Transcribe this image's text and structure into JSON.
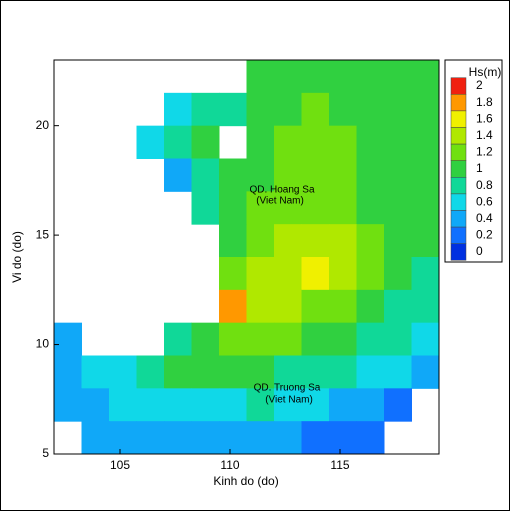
{
  "chart_data": {
    "type": "heatmap",
    "xlabel": "Kinh do (do)",
    "ylabel": "Vi do (do)",
    "xlim": [
      102,
      119.5
    ],
    "ylim": [
      5,
      23
    ],
    "xticks": [
      105,
      110,
      115
    ],
    "yticks": [
      5,
      10,
      15,
      20
    ],
    "x": [
      102.625,
      103.875,
      105.125,
      106.375,
      107.625,
      108.875,
      110.125,
      111.375,
      112.625,
      113.875,
      115.125,
      116.375,
      117.625,
      118.875
    ],
    "y": [
      22.25,
      20.75,
      19.25,
      17.75,
      16.25,
      14.75,
      13.25,
      11.75,
      10.25,
      8.75,
      7.25,
      5.75
    ],
    "values": [
      [
        null,
        null,
        null,
        null,
        null,
        null,
        null,
        1.0,
        1.1,
        1.1,
        1.1,
        1.0,
        1.0,
        1.0
      ],
      [
        null,
        null,
        null,
        null,
        0.6,
        0.9,
        0.8,
        1.0,
        1.1,
        1.2,
        1.1,
        1.1,
        1.0,
        1.0
      ],
      [
        null,
        null,
        null,
        0.6,
        0.9,
        1.0,
        null,
        1.1,
        1.2,
        1.2,
        1.2,
        1.1,
        1.0,
        1.0
      ],
      [
        null,
        null,
        null,
        null,
        0.5,
        0.9,
        1.0,
        1.1,
        1.2,
        1.2,
        1.2,
        1.1,
        1.1,
        1.0
      ],
      [
        null,
        null,
        null,
        null,
        null,
        0.8,
        1.1,
        1.2,
        1.3,
        1.3,
        1.2,
        1.1,
        1.1,
        1.0
      ],
      [
        null,
        null,
        null,
        null,
        null,
        null,
        1.1,
        1.3,
        1.4,
        1.5,
        1.4,
        1.2,
        1.1,
        1.0
      ],
      [
        null,
        null,
        null,
        null,
        null,
        null,
        1.2,
        1.4,
        1.5,
        1.6,
        1.4,
        1.2,
        1.0,
        0.9
      ],
      [
        null,
        null,
        null,
        null,
        null,
        null,
        1.8,
        1.5,
        1.4,
        1.3,
        1.2,
        1.0,
        0.9,
        0.8
      ],
      [
        0.5,
        null,
        null,
        null,
        0.9,
        1.1,
        1.3,
        1.3,
        1.2,
        1.1,
        1.0,
        0.9,
        0.8,
        0.6
      ],
      [
        0.5,
        0.6,
        0.7,
        0.9,
        1.0,
        1.0,
        1.0,
        1.0,
        0.9,
        0.9,
        0.8,
        0.7,
        0.6,
        0.5
      ],
      [
        0.5,
        0.5,
        0.6,
        0.7,
        0.7,
        0.7,
        0.7,
        0.8,
        0.7,
        0.6,
        0.5,
        0.4,
        0.3,
        null
      ],
      [
        null,
        0.4,
        0.4,
        0.4,
        0.4,
        0.4,
        0.5,
        0.5,
        0.4,
        0.3,
        0.3,
        0.2,
        null,
        null
      ]
    ],
    "colorbar": {
      "title": "Hs(m)",
      "levels": [
        0,
        0.2,
        0.4,
        0.6,
        0.8,
        1,
        1.2,
        1.4,
        1.6,
        1.8,
        2
      ],
      "colors": [
        "#0030e0",
        "#1070ff",
        "#10a8f8",
        "#10d8e8",
        "#10d898",
        "#30d040",
        "#70e010",
        "#b0e800",
        "#f0f000",
        "#ff9800",
        "#f02010"
      ]
    },
    "annotations": [
      "QD. Hoang Sa",
      "(Viet Nam)",
      "QD. Truong Sa",
      "(Viet Nam)"
    ]
  }
}
